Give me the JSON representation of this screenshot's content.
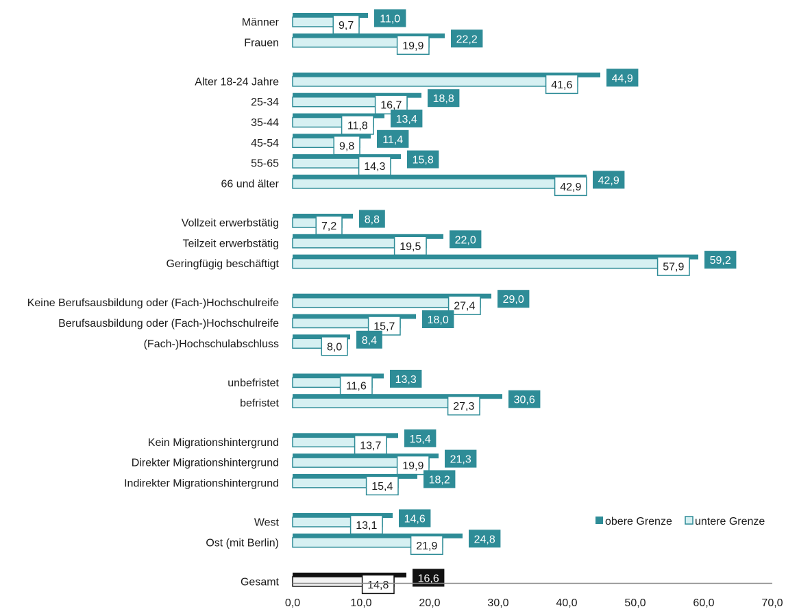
{
  "chart_data": {
    "type": "bar",
    "orientation": "horizontal",
    "xlim": [
      0,
      70
    ],
    "x_ticks": [
      "0,0",
      "10,0",
      "20,0",
      "30,0",
      "40,0",
      "50,0",
      "60,0",
      "70,0"
    ],
    "grid": false,
    "legend_position": "right",
    "series": [
      {
        "name": "obere Grenze",
        "color": "#2e8c97"
      },
      {
        "name": "untere Grenze",
        "color": "#d6f0f2"
      }
    ],
    "groups": [
      {
        "rows": [
          {
            "label": "Männer",
            "upper": 11.0,
            "lower": 9.7,
            "upper_text": "11,0",
            "lower_text": "9,7"
          },
          {
            "label": "Frauen",
            "upper": 22.2,
            "lower": 19.9,
            "upper_text": "22,2",
            "lower_text": "19,9"
          }
        ]
      },
      {
        "rows": [
          {
            "label": "Alter 18-24 Jahre",
            "upper": 44.9,
            "lower": 41.6,
            "upper_text": "44,9",
            "lower_text": "41,6"
          },
          {
            "label": "25-34",
            "upper": 18.8,
            "lower": 16.7,
            "upper_text": "18,8",
            "lower_text": "16,7"
          },
          {
            "label": "35-44",
            "upper": 13.4,
            "lower": 11.8,
            "upper_text": "13,4",
            "lower_text": "11,8"
          },
          {
            "label": "45-54",
            "upper": 11.4,
            "lower": 9.8,
            "upper_text": "11,4",
            "lower_text": "9,8"
          },
          {
            "label": "55-65",
            "upper": 15.8,
            "lower": 14.3,
            "upper_text": "15,8",
            "lower_text": "14,3"
          },
          {
            "label": "66 und älter",
            "upper": 42.9,
            "lower": 42.9,
            "upper_text": "42,9",
            "lower_text": "42,9"
          }
        ]
      },
      {
        "rows": [
          {
            "label": "Vollzeit erwerbstätig",
            "upper": 8.8,
            "lower": 7.2,
            "upper_text": "8,8",
            "lower_text": "7,2"
          },
          {
            "label": "Teilzeit erwerbstätig",
            "upper": 22.0,
            "lower": 19.5,
            "upper_text": "22,0",
            "lower_text": "19,5"
          },
          {
            "label": "Geringfügig beschäftigt",
            "upper": 59.2,
            "lower": 57.9,
            "upper_text": "59,2",
            "lower_text": "57,9"
          }
        ]
      },
      {
        "rows": [
          {
            "label": "Keine Berufsausbildung oder (Fach-)Hochschulreife",
            "upper": 29.0,
            "lower": 27.4,
            "upper_text": "29,0",
            "lower_text": "27,4"
          },
          {
            "label": "Berufsausbildung oder (Fach-)Hochschulreife",
            "upper": 18.0,
            "lower": 15.7,
            "upper_text": "18,0",
            "lower_text": "15,7"
          },
          {
            "label": "(Fach-)Hochschulabschluss",
            "upper": 8.4,
            "lower": 8.0,
            "upper_text": "8,4",
            "lower_text": "8,0"
          }
        ]
      },
      {
        "rows": [
          {
            "label": "unbefristet",
            "upper": 13.3,
            "lower": 11.6,
            "upper_text": "13,3",
            "lower_text": "11,6"
          },
          {
            "label": "befristet",
            "upper": 30.6,
            "lower": 27.3,
            "upper_text": "30,6",
            "lower_text": "27,3"
          }
        ]
      },
      {
        "rows": [
          {
            "label": "Kein Migrationshintergrund",
            "upper": 15.4,
            "lower": 13.7,
            "upper_text": "15,4",
            "lower_text": "13,7"
          },
          {
            "label": "Direkter Migrationshintergrund",
            "upper": 21.3,
            "lower": 19.9,
            "upper_text": "21,3",
            "lower_text": "19,9"
          },
          {
            "label": "Indirekter Migrationshintergrund",
            "upper": 18.2,
            "lower": 15.4,
            "upper_text": "18,2",
            "lower_text": "15,4"
          }
        ]
      },
      {
        "rows": [
          {
            "label": "West",
            "upper": 14.6,
            "lower": 13.1,
            "upper_text": "14,6",
            "lower_text": "13,1"
          },
          {
            "label": "Ost (mit Berlin)",
            "upper": 24.8,
            "lower": 21.9,
            "upper_text": "24,8",
            "lower_text": "21,9"
          }
        ]
      },
      {
        "rows": [
          {
            "label": "Gesamt",
            "upper": 16.6,
            "lower": 14.8,
            "upper_text": "16,6",
            "lower_text": "14,8",
            "highlight": true,
            "upper_color": "#111111",
            "lower_color": "#f2f2f2"
          }
        ]
      }
    ]
  }
}
